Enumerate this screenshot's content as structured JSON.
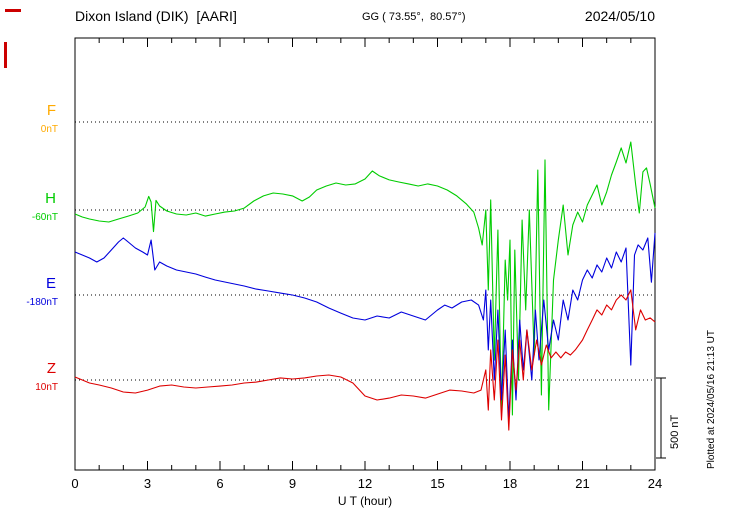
{
  "header": {
    "station": "Dixon Island (DIK)  [AARI]",
    "coords": "GG ( 73.55°,  80.57°)",
    "date": "2024/05/10"
  },
  "footer": {
    "plotted_at": "Plotted at 2024/05/16 21:13 UT"
  },
  "scale_bar": {
    "label": "500 nT",
    "span_nT": 500
  },
  "xaxis": {
    "label": "U T (hour)",
    "min": 0,
    "max": 24,
    "ticks": [
      0,
      3,
      6,
      9,
      12,
      15,
      18,
      21,
      24
    ]
  },
  "chart_data": {
    "type": "line",
    "title": "Dixon Island (DIK) [AARI] magnetogram 2024/05/10",
    "xlabel": "U T (hour)",
    "xlim": [
      0,
      24
    ],
    "grid": "dotted horizontal baselines per component",
    "legend_position": "left margin component labels",
    "vertical_scale_nT_per_bar": 500,
    "series": [
      {
        "name": "F",
        "baseline_label": "0nT",
        "baseline_nT": 0,
        "color": "#ffaa00",
        "points": []
      },
      {
        "name": "H",
        "baseline_label": "-60nT",
        "baseline_nT": -60,
        "color": "#00cc00",
        "points": [
          [
            0,
            -85
          ],
          [
            0.3,
            -104
          ],
          [
            0.6,
            -116
          ],
          [
            1,
            -129
          ],
          [
            1.4,
            -135
          ],
          [
            1.8,
            -116
          ],
          [
            2.2,
            -98
          ],
          [
            2.6,
            -79
          ],
          [
            2.9,
            -41
          ],
          [
            3.05,
            25
          ],
          [
            3.15,
            -10
          ],
          [
            3.25,
            -195
          ],
          [
            3.35,
            0
          ],
          [
            3.5,
            -35
          ],
          [
            3.8,
            -66
          ],
          [
            4.2,
            -85
          ],
          [
            4.6,
            -91
          ],
          [
            5,
            -79
          ],
          [
            5.4,
            -98
          ],
          [
            5.8,
            -85
          ],
          [
            6.2,
            -73
          ],
          [
            6.6,
            -66
          ],
          [
            7,
            -48
          ],
          [
            7.4,
            -4
          ],
          [
            7.8,
            28
          ],
          [
            8.2,
            46
          ],
          [
            8.6,
            40
          ],
          [
            9,
            28
          ],
          [
            9.4,
            -4
          ],
          [
            9.7,
            21
          ],
          [
            10,
            65
          ],
          [
            10.4,
            90
          ],
          [
            10.8,
            109
          ],
          [
            11.2,
            96
          ],
          [
            11.6,
            103
          ],
          [
            12,
            134
          ],
          [
            12.3,
            184
          ],
          [
            12.6,
            153
          ],
          [
            13,
            128
          ],
          [
            13.4,
            115
          ],
          [
            13.8,
            103
          ],
          [
            14.2,
            90
          ],
          [
            14.6,
            103
          ],
          [
            15,
            90
          ],
          [
            15.4,
            65
          ],
          [
            15.8,
            28
          ],
          [
            16.2,
            -23
          ],
          [
            16.5,
            -73
          ],
          [
            16.7,
            -173
          ],
          [
            16.85,
            -279
          ],
          [
            17,
            -60
          ],
          [
            17.1,
            -560
          ],
          [
            17.2,
            3
          ],
          [
            17.35,
            -998
          ],
          [
            17.5,
            -185
          ],
          [
            17.65,
            -1310
          ],
          [
            17.8,
            -373
          ],
          [
            17.9,
            -623
          ],
          [
            18,
            -248
          ],
          [
            18.1,
            -1341
          ],
          [
            18.2,
            -310
          ],
          [
            18.35,
            -1123
          ],
          [
            18.5,
            -123
          ],
          [
            18.65,
            -685
          ],
          [
            18.8,
            -60
          ],
          [
            19,
            -966
          ],
          [
            19.15,
            190
          ],
          [
            19.3,
            -1216
          ],
          [
            19.45,
            253
          ],
          [
            19.6,
            -1310
          ],
          [
            19.8,
            -498
          ],
          [
            20,
            -248
          ],
          [
            20.2,
            -29
          ],
          [
            20.4,
            -341
          ],
          [
            20.6,
            -154
          ],
          [
            20.8,
            -73
          ],
          [
            21,
            -135
          ],
          [
            21.2,
            -29
          ],
          [
            21.4,
            34
          ],
          [
            21.6,
            96
          ],
          [
            21.8,
            -29
          ],
          [
            22,
            53
          ],
          [
            22.2,
            159
          ],
          [
            22.4,
            240
          ],
          [
            22.6,
            328
          ],
          [
            22.8,
            234
          ],
          [
            23,
            365
          ],
          [
            23.2,
            96
          ],
          [
            23.35,
            -79
          ],
          [
            23.5,
            178
          ],
          [
            23.65,
            203
          ],
          [
            23.8,
            100
          ],
          [
            24,
            -48
          ]
        ]
      },
      {
        "name": "E",
        "baseline_label": "-180nT",
        "baseline_nT": -180,
        "color": "#0000dd",
        "points": [
          [
            0,
            89
          ],
          [
            0.3,
            70
          ],
          [
            0.6,
            51
          ],
          [
            0.9,
            26
          ],
          [
            1.2,
            51
          ],
          [
            1.5,
            101
          ],
          [
            1.8,
            151
          ],
          [
            2,
            176
          ],
          [
            2.2,
            151
          ],
          [
            2.5,
            114
          ],
          [
            2.8,
            89
          ],
          [
            3,
            70
          ],
          [
            3.15,
            164
          ],
          [
            3.3,
            -24
          ],
          [
            3.5,
            26
          ],
          [
            3.8,
            1
          ],
          [
            4.2,
            -24
          ],
          [
            4.6,
            -36
          ],
          [
            5,
            -49
          ],
          [
            5.4,
            -68
          ],
          [
            5.8,
            -86
          ],
          [
            6.2,
            -99
          ],
          [
            6.6,
            -111
          ],
          [
            7,
            -124
          ],
          [
            7.5,
            -143
          ],
          [
            8,
            -155
          ],
          [
            8.5,
            -168
          ],
          [
            9,
            -180
          ],
          [
            9.5,
            -199
          ],
          [
            10,
            -224
          ],
          [
            10.5,
            -261
          ],
          [
            11,
            -293
          ],
          [
            11.5,
            -324
          ],
          [
            12,
            -336
          ],
          [
            12.5,
            -311
          ],
          [
            13,
            -324
          ],
          [
            13.5,
            -286
          ],
          [
            14,
            -311
          ],
          [
            14.5,
            -336
          ],
          [
            15,
            -274
          ],
          [
            15.3,
            -243
          ],
          [
            15.6,
            -261
          ],
          [
            16,
            -224
          ],
          [
            16.4,
            -211
          ],
          [
            16.7,
            -243
          ],
          [
            16.9,
            -336
          ],
          [
            17,
            -149
          ],
          [
            17.1,
            -524
          ],
          [
            17.2,
            -211
          ],
          [
            17.35,
            -711
          ],
          [
            17.5,
            -274
          ],
          [
            17.65,
            -836
          ],
          [
            17.8,
            -399
          ],
          [
            17.95,
            -961
          ],
          [
            18.1,
            -461
          ],
          [
            18.25,
            -836
          ],
          [
            18.4,
            -336
          ],
          [
            18.55,
            -649
          ],
          [
            18.7,
            -399
          ],
          [
            18.9,
            -711
          ],
          [
            19.05,
            -274
          ],
          [
            19.2,
            -586
          ],
          [
            19.4,
            -211
          ],
          [
            19.6,
            -524
          ],
          [
            19.8,
            -336
          ],
          [
            20,
            -461
          ],
          [
            20.2,
            -211
          ],
          [
            20.4,
            -336
          ],
          [
            20.6,
            -149
          ],
          [
            20.8,
            -211
          ],
          [
            21,
            -86
          ],
          [
            21.2,
            -24
          ],
          [
            21.4,
            -74
          ],
          [
            21.6,
            8
          ],
          [
            21.8,
            -36
          ],
          [
            22,
            51
          ],
          [
            22.2,
            -11
          ],
          [
            22.4,
            89
          ],
          [
            22.6,
            26
          ],
          [
            22.8,
            114
          ],
          [
            23,
            -618
          ],
          [
            23.15,
            70
          ],
          [
            23.3,
            133
          ],
          [
            23.5,
            101
          ],
          [
            23.7,
            176
          ],
          [
            23.85,
            -100
          ],
          [
            24,
            208
          ]
        ]
      },
      {
        "name": "Z",
        "baseline_label": "10nT",
        "baseline_nT": 10,
        "color": "#dd0000",
        "points": [
          [
            0,
            29
          ],
          [
            0.3,
            10
          ],
          [
            0.6,
            -9
          ],
          [
            1,
            -21
          ],
          [
            1.5,
            -40
          ],
          [
            2,
            -65
          ],
          [
            2.5,
            -71
          ],
          [
            3,
            -53
          ],
          [
            3.5,
            -28
          ],
          [
            4,
            -21
          ],
          [
            4.5,
            -34
          ],
          [
            5,
            -40
          ],
          [
            5.5,
            -34
          ],
          [
            6,
            -28
          ],
          [
            6.5,
            -21
          ],
          [
            7,
            -9
          ],
          [
            7.5,
            -3
          ],
          [
            8,
            10
          ],
          [
            8.5,
            23
          ],
          [
            9,
            16
          ],
          [
            9.5,
            23
          ],
          [
            10,
            35
          ],
          [
            10.5,
            41
          ],
          [
            11,
            29
          ],
          [
            11.5,
            -9
          ],
          [
            12,
            -90
          ],
          [
            12.5,
            -115
          ],
          [
            13,
            -103
          ],
          [
            13.5,
            -84
          ],
          [
            14,
            -90
          ],
          [
            14.5,
            -103
          ],
          [
            15,
            -78
          ],
          [
            15.5,
            -53
          ],
          [
            16,
            -59
          ],
          [
            16.5,
            -71
          ],
          [
            16.8,
            -53
          ],
          [
            17,
            73
          ],
          [
            17.1,
            -178
          ],
          [
            17.2,
            198
          ],
          [
            17.35,
            -115
          ],
          [
            17.5,
            260
          ],
          [
            17.65,
            -240
          ],
          [
            17.8,
            166
          ],
          [
            17.95,
            -303
          ],
          [
            18.1,
            198
          ],
          [
            18.25,
            -53
          ],
          [
            18.4,
            260
          ],
          [
            18.55,
            10
          ],
          [
            18.7,
            323
          ],
          [
            18.9,
            73
          ],
          [
            19.1,
            260
          ],
          [
            19.3,
            104
          ],
          [
            19.5,
            229
          ],
          [
            19.7,
            148
          ],
          [
            19.9,
            185
          ],
          [
            20.1,
            148
          ],
          [
            20.3,
            185
          ],
          [
            20.5,
            166
          ],
          [
            20.7,
            198
          ],
          [
            21,
            260
          ],
          [
            21.2,
            323
          ],
          [
            21.4,
            385
          ],
          [
            21.6,
            448
          ],
          [
            21.8,
            416
          ],
          [
            22,
            479
          ],
          [
            22.2,
            448
          ],
          [
            22.4,
            510
          ],
          [
            22.6,
            541
          ],
          [
            22.8,
            510
          ],
          [
            23,
            573
          ],
          [
            23.2,
            323
          ],
          [
            23.4,
            448
          ],
          [
            23.6,
            385
          ],
          [
            23.8,
            398
          ],
          [
            24,
            373
          ]
        ]
      }
    ]
  }
}
